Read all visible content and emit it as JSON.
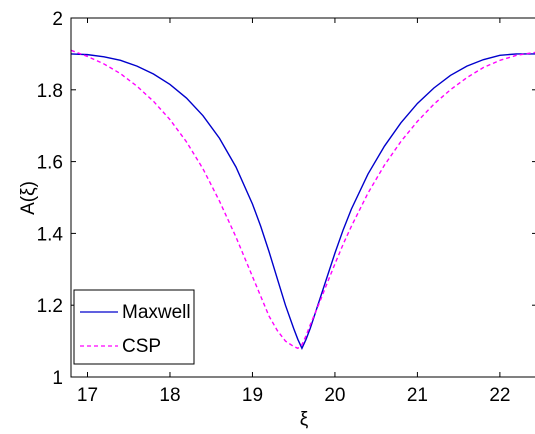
{
  "chart_data": {
    "type": "line",
    "xlabel": "ξ",
    "ylabel": "A(ξ)",
    "xlim": [
      16.8,
      22.45
    ],
    "ylim": [
      1,
      2
    ],
    "xticks": [
      17,
      18,
      19,
      20,
      21,
      22
    ],
    "yticks": [
      1,
      1.2,
      1.4,
      1.6,
      1.8,
      2
    ],
    "ytick_labels": [
      "1",
      "1.2",
      "1.4",
      "1.6",
      "1.8",
      "2"
    ],
    "grid": false,
    "legend_position": "bottom-left",
    "series": [
      {
        "name": "Maxwell",
        "color": "#0000cc",
        "style": "solid",
        "x": [
          16.8,
          17.0,
          17.2,
          17.4,
          17.6,
          17.8,
          18.0,
          18.2,
          18.4,
          18.6,
          18.8,
          19.0,
          19.1,
          19.2,
          19.3,
          19.4,
          19.5,
          19.55,
          19.6,
          19.65,
          19.7,
          19.75,
          19.8,
          19.9,
          20.0,
          20.1,
          20.2,
          20.4,
          20.6,
          20.8,
          21.0,
          21.2,
          21.4,
          21.6,
          21.8,
          22.0,
          22.2,
          22.45
        ],
        "y": [
          1.9,
          1.898,
          1.892,
          1.882,
          1.866,
          1.844,
          1.815,
          1.777,
          1.728,
          1.665,
          1.585,
          1.482,
          1.42,
          1.35,
          1.275,
          1.2,
          1.135,
          1.105,
          1.08,
          1.105,
          1.135,
          1.17,
          1.205,
          1.275,
          1.345,
          1.41,
          1.468,
          1.565,
          1.643,
          1.708,
          1.762,
          1.805,
          1.84,
          1.866,
          1.884,
          1.896,
          1.9,
          1.9
        ]
      },
      {
        "name": "CSP",
        "color": "#ff00ff",
        "style": "dashed",
        "x": [
          16.8,
          17.0,
          17.2,
          17.4,
          17.6,
          17.8,
          18.0,
          18.2,
          18.4,
          18.6,
          18.8,
          19.0,
          19.1,
          19.2,
          19.3,
          19.4,
          19.5,
          19.55,
          19.6,
          19.65,
          19.7,
          19.8,
          19.9,
          20.0,
          20.1,
          20.2,
          20.4,
          20.6,
          20.8,
          21.0,
          21.2,
          21.4,
          21.6,
          21.8,
          22.0,
          22.2,
          22.45
        ],
        "y": [
          1.91,
          1.893,
          1.872,
          1.845,
          1.81,
          1.768,
          1.717,
          1.655,
          1.58,
          1.49,
          1.39,
          1.28,
          1.225,
          1.17,
          1.13,
          1.1,
          1.085,
          1.08,
          1.09,
          1.115,
          1.145,
          1.2,
          1.258,
          1.315,
          1.37,
          1.42,
          1.512,
          1.59,
          1.656,
          1.712,
          1.76,
          1.8,
          1.834,
          1.862,
          1.882,
          1.896,
          1.905
        ]
      }
    ]
  }
}
